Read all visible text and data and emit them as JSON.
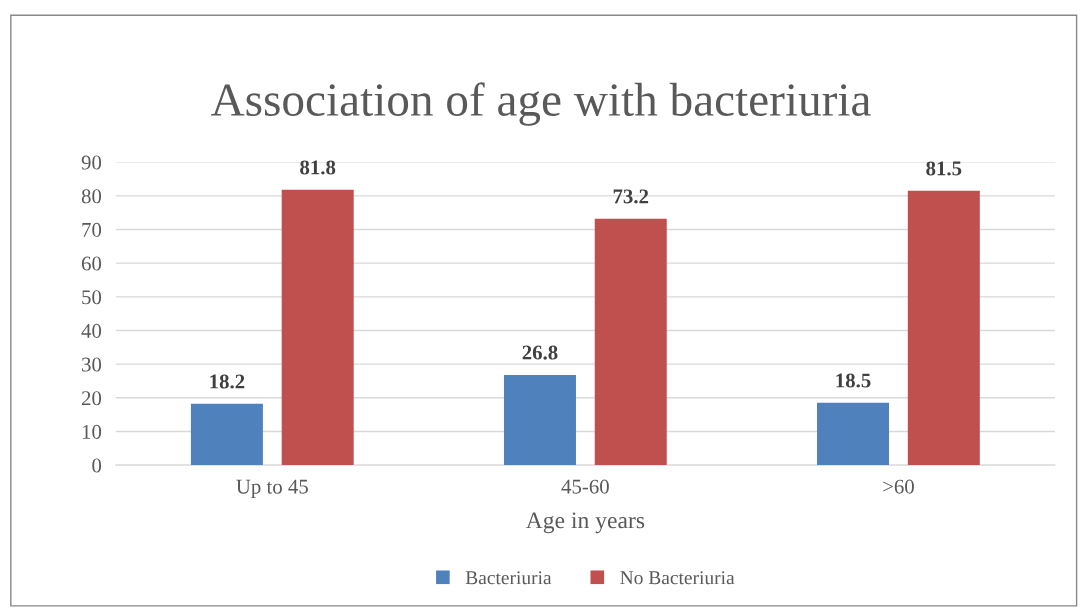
{
  "chart_data": {
    "type": "bar",
    "title": "Association of age with bacteriuria",
    "xlabel": "Age in years",
    "categories": [
      "Up to 45",
      "45-60",
      ">60"
    ],
    "series": [
      {
        "name": "Bacteriuria",
        "color": "#4f81bd",
        "values": [
          18.2,
          26.8,
          18.5
        ]
      },
      {
        "name": "No Bacteriuria",
        "color": "#c0504d",
        "values": [
          81.8,
          73.2,
          81.5
        ]
      }
    ],
    "ylim": [
      0,
      90
    ],
    "yticks": [
      0,
      10,
      20,
      30,
      40,
      50,
      60,
      70,
      80,
      90
    ],
    "grid": "y",
    "legend": "bottom",
    "data_labels": true
  }
}
